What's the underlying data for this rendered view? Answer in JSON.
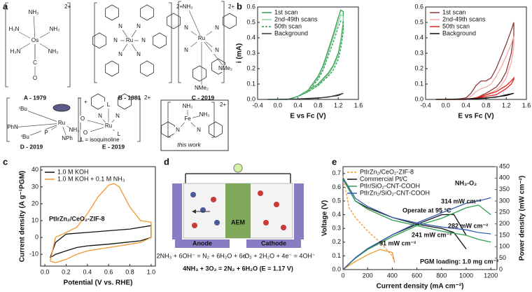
{
  "panel_labels": [
    "a",
    "b",
    "c",
    "d",
    "e"
  ],
  "panel_a": {
    "structures": [
      {
        "caption": "A - 1979",
        "charge": "2+",
        "atoms": [
          "NH₃",
          "H₃N",
          "NH₃",
          "Os",
          "H₃N",
          "NH₃",
          "C",
          "O"
        ]
      },
      {
        "caption": "B - 1981",
        "charge": "2+",
        "atoms": [
          "N",
          "N",
          "N",
          "Ru",
          "N",
          "N",
          "N"
        ]
      },
      {
        "caption": "C - 2019",
        "charge": "2+",
        "atoms": [
          "NH₃",
          "N",
          "N",
          "Ru",
          "N",
          "N",
          "NMe₂",
          "NMe₂"
        ]
      },
      {
        "caption": "D - 2019",
        "charge": "+",
        "atoms": [
          "ᵗBu",
          "Ru",
          "P",
          "NH₃",
          "ᵗBu",
          "PhN",
          "NPh"
        ]
      },
      {
        "caption": "E - 2019",
        "charge": "2+",
        "atoms": [
          "O",
          "O",
          "Ru",
          "L",
          "L",
          "N",
          "N"
        ],
        "note": "L = isoquinoline"
      },
      {
        "caption": "this work",
        "charge": "2+",
        "atoms": [
          "NH₃",
          "NH₃",
          "Fe",
          "N",
          "N"
        ]
      }
    ]
  },
  "panel_d": {
    "membrane": "AEM",
    "anode": "Anode",
    "cathode": "Cathode",
    "anode_reaction": "2NH₃ + 6OH⁻ = N₂ + 6H₂O + 6e⁻",
    "cathode_reaction": "O₂ + 2H₂O + 4e⁻ = 4OH⁻",
    "overall_reaction": "4NH₃ + 3O₂ = 2N₂ + 6H₂O (E = 1.17 V)"
  },
  "chart_data": [
    {
      "type": "line",
      "xlabel": "E vs Fc (V)",
      "ylabel": "i (mA)",
      "legend": "upper left",
      "xlim": [
        -0.4,
        1.6
      ],
      "xticks": [
        -0.4,
        {
          "value": 0,
          "label": "0.0"
        },
        0.4,
        0.8,
        1.2,
        1.6
      ],
      "ylim": [
        0,
        0.6
      ],
      "yticks": [
        {
          "value": 0,
          "label": "0.0"
        },
        0.1,
        0.2,
        0.3,
        0.4,
        0.5,
        0.6
      ],
      "series": [
        {
          "name": "1st scan",
          "color": "#2e9e4f",
          "dash": false,
          "x": [
            -0.2,
            0.0,
            0.2,
            0.4,
            0.6,
            0.8,
            0.9,
            1.0,
            1.1,
            1.2,
            1.25,
            1.3,
            1.3,
            1.25,
            1.2,
            1.1,
            1.0,
            0.8,
            0.6,
            0.4,
            0.2,
            0.0,
            -0.2
          ],
          "values": [
            0,
            0,
            0,
            0.02,
            0.06,
            0.15,
            0.22,
            0.32,
            0.42,
            0.53,
            0.58,
            0.57,
            0.5,
            0.38,
            0.3,
            0.22,
            0.17,
            0.1,
            0.06,
            0.02,
            0,
            0,
            0
          ]
        },
        {
          "name": "2nd-49th scans",
          "color": "#8fd19e",
          "dash": false,
          "x": [
            -0.2,
            0.0,
            0.2,
            0.4,
            0.6,
            0.8,
            0.9,
            1.0,
            1.1,
            1.2,
            1.25,
            1.3,
            1.3,
            1.25,
            1.2,
            1.1,
            1.0,
            0.8,
            0.6,
            0.4,
            0.2,
            0.0,
            -0.2
          ],
          "values": [
            0,
            0,
            0,
            0.02,
            0.055,
            0.14,
            0.2,
            0.3,
            0.4,
            0.5,
            0.55,
            0.54,
            0.47,
            0.36,
            0.28,
            0.21,
            0.16,
            0.09,
            0.05,
            0.02,
            0,
            0,
            0
          ]
        },
        {
          "name": "50th scan",
          "color": "#2e9e4f",
          "dash": true,
          "x": [
            -0.2,
            0.0,
            0.2,
            0.4,
            0.6,
            0.8,
            0.9,
            1.0,
            1.1,
            1.2,
            1.25,
            1.3,
            1.3,
            1.25,
            1.2,
            1.1,
            1.0,
            0.8,
            0.6,
            0.4,
            0.2,
            0.0,
            -0.2
          ],
          "values": [
            0,
            0,
            0,
            0.02,
            0.05,
            0.13,
            0.19,
            0.28,
            0.37,
            0.47,
            0.51,
            0.5,
            0.44,
            0.33,
            0.26,
            0.19,
            0.15,
            0.09,
            0.05,
            0.02,
            0,
            0,
            0
          ]
        },
        {
          "name": "Background",
          "color": "#333333",
          "dash": false,
          "x": [
            -0.2,
            0.4,
            0.8,
            1.0,
            1.2,
            1.3,
            1.2,
            0.8,
            0.4,
            -0.2
          ],
          "values": [
            0,
            0.003,
            0.01,
            0.015,
            0.03,
            0.04,
            0.025,
            0.008,
            0.002,
            0
          ]
        }
      ]
    },
    {
      "type": "line",
      "xlabel": "E vs Fc (V)",
      "legend": "upper left",
      "xlim": [
        -0.4,
        1.6
      ],
      "xticks": [
        -0.4,
        {
          "value": 0,
          "label": "0.0"
        },
        0.4,
        0.8,
        1.2,
        1.6
      ],
      "ylim": [
        0,
        0.6
      ],
      "yticks": [
        {
          "value": 0,
          "label": "0.0"
        },
        0.1,
        0.2,
        0.3,
        0.4,
        0.5,
        0.6
      ],
      "series": [
        {
          "name": "1st scan",
          "color": "#8b3a3a",
          "dash": false,
          "x": [
            -0.2,
            0.2,
            0.4,
            0.5,
            0.6,
            0.7,
            0.8,
            0.9,
            1.0,
            1.1,
            1.2,
            1.3,
            1.35,
            1.35,
            1.3,
            1.2,
            1.1,
            1.0,
            0.8,
            0.6,
            0.4,
            0.2,
            -0.2
          ],
          "values": [
            0,
            0,
            0.01,
            0.04,
            0.09,
            0.12,
            0.12,
            0.14,
            0.2,
            0.28,
            0.36,
            0.45,
            0.5,
            0.42,
            0.3,
            0.18,
            0.12,
            0.08,
            0.04,
            0.01,
            0,
            0,
            0
          ]
        },
        {
          "name": "2nd-49th scans",
          "color": "#f2aaa8",
          "dash": false,
          "x": [
            -0.2,
            0.2,
            0.4,
            0.5,
            0.6,
            0.7,
            0.8,
            0.9,
            1.0,
            1.1,
            1.2,
            1.3,
            1.35,
            1.35,
            1.3,
            1.2,
            1.1,
            1.0,
            0.8,
            0.6,
            0.4,
            0.2,
            -0.2
          ],
          "values": [
            0,
            0,
            0.005,
            0.02,
            0.05,
            0.07,
            0.08,
            0.1,
            0.15,
            0.21,
            0.28,
            0.36,
            0.41,
            0.34,
            0.24,
            0.14,
            0.09,
            0.06,
            0.03,
            0.01,
            0,
            0,
            0
          ]
        },
        {
          "name": "50th scan",
          "color": "#e0201b",
          "dash": false,
          "x": [
            -0.2,
            0.2,
            0.4,
            0.5,
            0.6,
            0.7,
            0.8,
            0.9,
            1.0,
            1.1,
            1.2,
            1.3,
            1.35,
            1.35,
            1.3,
            1.2,
            1.1,
            1.0,
            0.8,
            0.6,
            0.4,
            0.2,
            -0.2
          ],
          "values": [
            0,
            0,
            0,
            0.005,
            0.01,
            0.02,
            0.03,
            0.04,
            0.05,
            0.07,
            0.09,
            0.12,
            0.14,
            0.13,
            0.1,
            0.07,
            0.05,
            0.03,
            0.02,
            0.01,
            0,
            0,
            0
          ]
        },
        {
          "name": "Background",
          "color": "#111111",
          "dash": false,
          "x": [
            -0.2,
            0.4,
            0.8,
            1.0,
            1.2,
            1.35,
            1.2,
            0.8,
            0.4,
            -0.2
          ],
          "values": [
            0,
            0.003,
            0.01,
            0.015,
            0.03,
            0.04,
            0.025,
            0.008,
            0.002,
            0
          ]
        }
      ]
    },
    {
      "type": "line",
      "xlabel": "Potential (V vs. RHE)",
      "ylabel": "Current density (A g⁻¹PGM)",
      "legend": "upper left",
      "annotations": [
        "PtIrZn₂/CeO₂-ZIF-8"
      ],
      "xlim": [
        -0.04,
        1.04
      ],
      "xticks": [
        {
          "value": 0,
          "label": "0.0"
        },
        0.2,
        0.4,
        0.6,
        0.8,
        {
          "value": 1,
          "label": "1.0"
        }
      ],
      "ylim": [
        -17,
        42
      ],
      "yticks": [
        -10,
        0,
        10,
        20,
        30,
        40
      ],
      "series": [
        {
          "name": "1.0 M KOH",
          "color": "#111111",
          "dash": false,
          "x": [
            0.05,
            0.1,
            0.2,
            0.4,
            0.6,
            0.8,
            1.0,
            1.0,
            0.9,
            0.6,
            0.4,
            0.3,
            0.2,
            0.1,
            0.05
          ],
          "values": [
            -12,
            -3,
            2,
            3,
            4,
            5,
            7,
            0,
            -2,
            -4,
            -5,
            -6,
            -8,
            -10,
            -12
          ]
        },
        {
          "name": "1.0 M KOH + 0.1 M NH₃",
          "color": "#f0962e",
          "dash": false,
          "x": [
            0.05,
            0.1,
            0.2,
            0.3,
            0.4,
            0.5,
            0.6,
            0.65,
            0.7,
            0.8,
            0.9,
            1.0,
            1.0,
            0.9,
            0.8,
            0.7,
            0.6,
            0.5,
            0.4,
            0.3,
            0.2,
            0.1,
            0.05
          ],
          "values": [
            -14,
            0,
            3,
            6,
            14,
            24,
            31,
            32,
            30,
            18,
            10,
            9,
            0,
            -3,
            -4,
            -5,
            -6,
            -7,
            -8,
            -10,
            -13,
            -15,
            -14
          ]
        }
      ]
    },
    {
      "type": "line",
      "xlabel": "Current density (mA cm⁻²)",
      "ylabel": "Voltage (V)",
      "y2label": "Power density (mW cm⁻²)",
      "legend": "upper left",
      "annotations": [
        "NH₃-O₂",
        "Operate at 95 °C",
        "314 mW cm⁻²",
        "282 mW cm⁻²",
        "241 mW cm⁻²",
        "91 mW cm⁻²",
        "PGM loading: 1.0 mg cm⁻²"
      ],
      "xlim": [
        0,
        1250
      ],
      "xticks": [
        0,
        200,
        400,
        600,
        800,
        1000,
        1200
      ],
      "ylim": [
        0,
        0.75
      ],
      "yticks": [
        {
          "value": 0,
          "label": "0.0"
        },
        0.1,
        0.2,
        0.3,
        0.4,
        0.5,
        0.6,
        0.7
      ],
      "y2lim": [
        0,
        450
      ],
      "y2ticks": [
        0,
        50,
        100,
        150,
        200,
        250,
        300,
        350,
        400,
        450
      ],
      "series": [
        {
          "name": "PtIrZn₂/CeO₂-ZIF-8",
          "color": "#f0962e",
          "dash": true,
          "x": [
            0,
            50,
            100,
            200,
            300,
            400,
            420
          ],
          "values": [
            0.68,
            0.45,
            0.38,
            0.28,
            0.2,
            0.1,
            0.05
          ],
          "power": [
            0,
            18,
            35,
            65,
            88,
            75,
            30
          ]
        },
        {
          "name": "Commercial Pt/C",
          "color": "#111111",
          "dash": false,
          "x": [
            0,
            100,
            200,
            400,
            600,
            800,
            900,
            1000
          ],
          "values": [
            0.66,
            0.5,
            0.45,
            0.38,
            0.33,
            0.3,
            0.27,
            0.15
          ],
          "power": [
            0,
            50,
            90,
            152,
            198,
            240,
            241,
            150
          ]
        },
        {
          "name": "PtIr/SiO₂-CNT-COOH",
          "color": "#2e9e4f",
          "dash": false,
          "x": [
            0,
            100,
            200,
            400,
            600,
            800,
            1000,
            1100,
            1200
          ],
          "values": [
            0.66,
            0.5,
            0.44,
            0.36,
            0.32,
            0.28,
            0.25,
            0.22,
            0.2
          ],
          "power": [
            0,
            50,
            88,
            144,
            192,
            224,
            270,
            282,
            240
          ]
        },
        {
          "name": "PtIrZn₂/SiO₂-CNT-COOH",
          "color": "#3b5fb0",
          "dash": false,
          "x": [
            0,
            100,
            200,
            400,
            600,
            800,
            1000,
            1100,
            1200
          ],
          "values": [
            0.67,
            0.52,
            0.46,
            0.38,
            0.34,
            0.31,
            0.29,
            0.27,
            0.26
          ],
          "power": [
            0,
            52,
            92,
            152,
            204,
            248,
            290,
            300,
            314
          ]
        }
      ]
    }
  ]
}
